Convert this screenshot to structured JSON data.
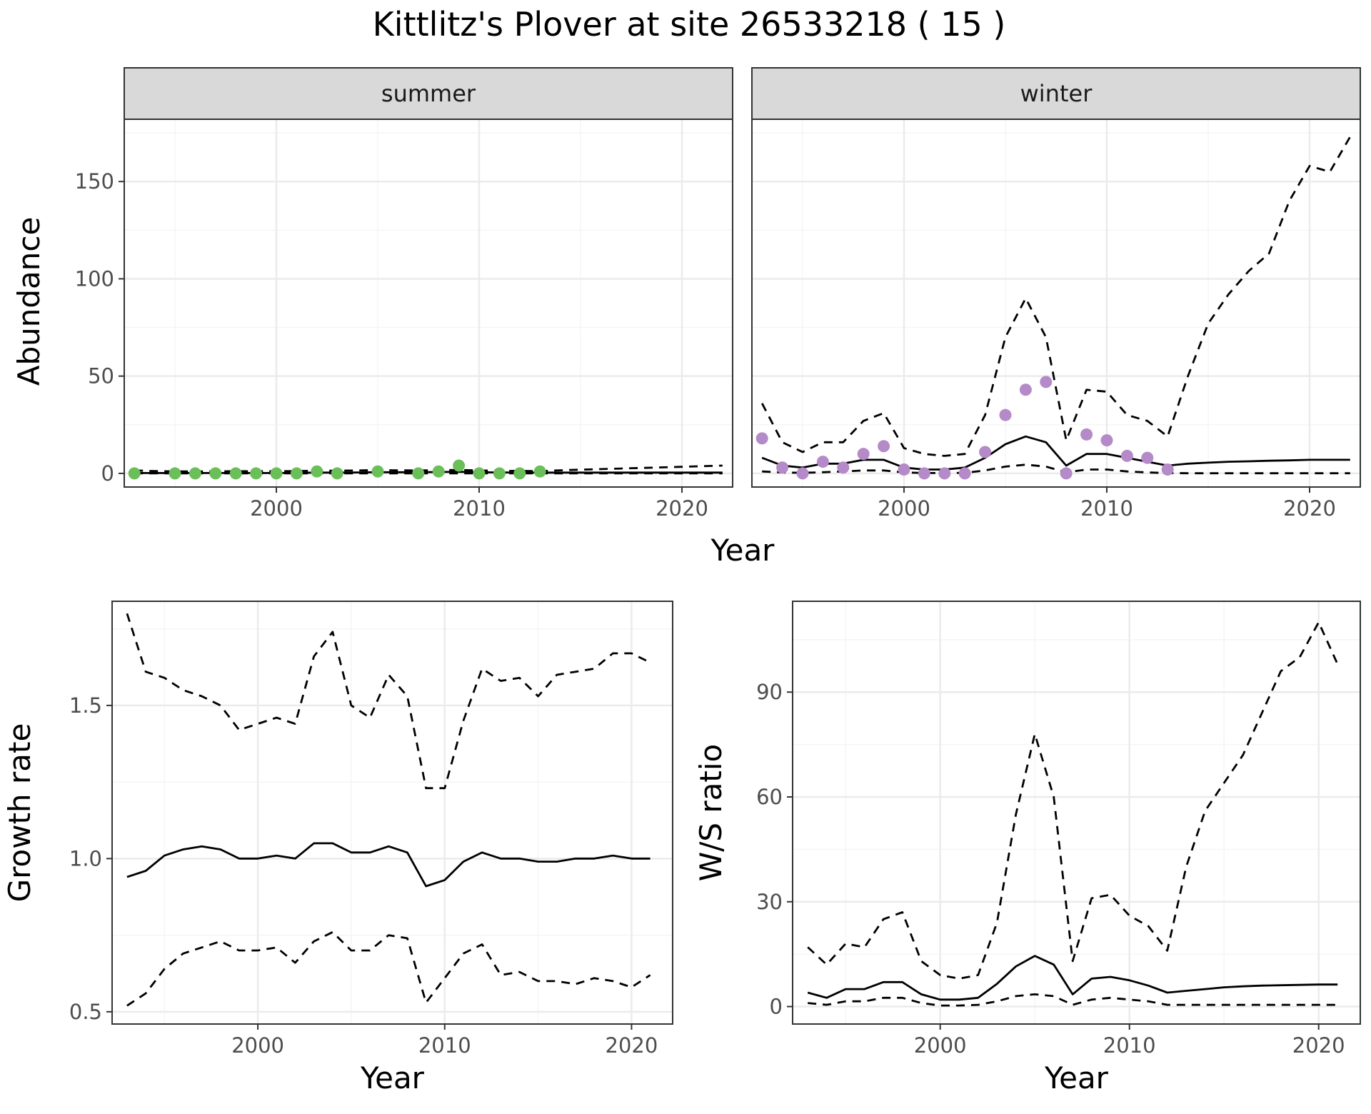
{
  "title": "Kittlitz's Plover at site 26533218 ( 15 )",
  "colors": {
    "summer_points": "#6bbf59",
    "winter_points": "#b48ac8",
    "line": "#000000",
    "strip_fill": "#d9d9d9",
    "grid_major": "#ebebeb",
    "grid_minor": "#f5f5f5"
  },
  "chart_data": [
    {
      "type": "line",
      "panel": "summer",
      "strip_label": "summer",
      "ylabel": "Abundance",
      "xlabel": "Year",
      "xlim": [
        1992.5,
        2022.5
      ],
      "ylim": [
        -7,
        182
      ],
      "x_ticks": [
        2000,
        2010,
        2020
      ],
      "y_ticks": [
        0,
        50,
        100,
        150
      ],
      "grid": true,
      "series": [
        {
          "role": "estimate",
          "style": "solid",
          "x": [
            1993,
            1994,
            1995,
            1996,
            1997,
            1998,
            1999,
            2000,
            2001,
            2002,
            2003,
            2004,
            2005,
            2006,
            2007,
            2008,
            2009,
            2010,
            2011,
            2012,
            2013,
            2014,
            2015,
            2016,
            2017,
            2018,
            2019,
            2020,
            2021,
            2022
          ],
          "y": [
            0.2,
            0.2,
            0.2,
            0.2,
            0.2,
            0.2,
            0.2,
            0.2,
            0.3,
            0.4,
            0.4,
            0.5,
            0.6,
            0.6,
            0.6,
            0.7,
            0.8,
            0.6,
            0.5,
            0.5,
            0.4,
            0.4,
            0.4,
            0.4,
            0.4,
            0.4,
            0.4,
            0.4,
            0.4,
            0.4
          ]
        },
        {
          "role": "upper",
          "style": "dashed",
          "x": [
            1993,
            1994,
            1995,
            1996,
            1997,
            1998,
            1999,
            2000,
            2001,
            2002,
            2003,
            2004,
            2005,
            2006,
            2007,
            2008,
            2009,
            2010,
            2011,
            2012,
            2013,
            2014,
            2015,
            2016,
            2017,
            2018,
            2019,
            2020,
            2021,
            2022
          ],
          "y": [
            1.5,
            1.2,
            1.0,
            1.0,
            1.0,
            1.1,
            1.1,
            1.1,
            1.2,
            1.4,
            1.4,
            1.5,
            1.7,
            1.6,
            1.5,
            1.6,
            1.8,
            1.5,
            1.3,
            1.3,
            1.2,
            1.6,
            1.9,
            2.2,
            2.5,
            2.8,
            3.1,
            3.4,
            3.7,
            4.0
          ]
        },
        {
          "role": "lower",
          "style": "dashed",
          "x": [
            1993,
            1994,
            1995,
            1996,
            1997,
            1998,
            1999,
            2000,
            2001,
            2002,
            2003,
            2004,
            2005,
            2006,
            2007,
            2008,
            2009,
            2010,
            2011,
            2012,
            2013,
            2014,
            2015,
            2016,
            2017,
            2018,
            2019,
            2020,
            2021,
            2022
          ],
          "y": [
            0,
            0,
            0,
            0,
            0,
            0,
            0,
            0,
            0,
            0,
            0,
            0,
            0,
            0,
            0,
            0,
            0,
            0,
            0,
            0,
            0,
            0,
            0,
            0,
            0,
            0,
            0,
            0,
            0,
            0
          ]
        },
        {
          "role": "observed",
          "style": "points",
          "x": [
            1993,
            1995,
            1996,
            1997,
            1998,
            1999,
            2000,
            2001,
            2002,
            2003,
            2005,
            2007,
            2008,
            2009,
            2010,
            2011,
            2012,
            2013
          ],
          "y": [
            0,
            0,
            0,
            0,
            0,
            0,
            0,
            0,
            1,
            0,
            1,
            0,
            1,
            4,
            0,
            0,
            0,
            1
          ]
        }
      ]
    },
    {
      "type": "line",
      "panel": "winter",
      "strip_label": "winter",
      "ylabel": "Abundance",
      "xlabel": "Year",
      "xlim": [
        1992.5,
        2022.5
      ],
      "ylim": [
        -7,
        182
      ],
      "x_ticks": [
        2000,
        2010,
        2020
      ],
      "y_ticks": [
        0,
        50,
        100,
        150
      ],
      "grid": true,
      "series": [
        {
          "role": "estimate",
          "style": "solid",
          "x": [
            1993,
            1994,
            1995,
            1996,
            1997,
            1998,
            1999,
            2000,
            2001,
            2002,
            2003,
            2004,
            2005,
            2006,
            2007,
            2008,
            2009,
            2010,
            2011,
            2012,
            2013,
            2014,
            2015,
            2016,
            2017,
            2018,
            2019,
            2020,
            2021,
            2022
          ],
          "y": [
            8,
            4,
            3,
            5,
            5,
            7,
            7,
            3,
            2,
            2,
            3,
            8,
            15,
            19,
            16,
            4,
            10,
            10,
            8,
            6,
            4,
            5,
            5.5,
            6,
            6.2,
            6.5,
            6.7,
            7,
            7,
            7
          ]
        },
        {
          "role": "upper",
          "style": "dashed",
          "x": [
            1993,
            1994,
            1995,
            1996,
            1997,
            1998,
            1999,
            2000,
            2001,
            2002,
            2003,
            2004,
            2005,
            2006,
            2007,
            2008,
            2009,
            2010,
            2011,
            2012,
            2013,
            2014,
            2015,
            2016,
            2017,
            2018,
            2019,
            2020,
            2021,
            2022
          ],
          "y": [
            36,
            16,
            11,
            16,
            16,
            27,
            31,
            13,
            10,
            9,
            10,
            30,
            70,
            90,
            70,
            17,
            43,
            42,
            30,
            27,
            19,
            50,
            77,
            92,
            104,
            113,
            140,
            158,
            155,
            173
          ]
        },
        {
          "role": "lower",
          "style": "dashed",
          "x": [
            1993,
            1994,
            1995,
            1996,
            1997,
            1998,
            1999,
            2000,
            2001,
            2002,
            2003,
            2004,
            2005,
            2006,
            2007,
            2008,
            2009,
            2010,
            2011,
            2012,
            2013,
            2014,
            2015,
            2016,
            2017,
            2018,
            2019,
            2020,
            2021,
            2022
          ],
          "y": [
            1,
            0.5,
            0.3,
            0.6,
            1,
            1.5,
            1.5,
            0.5,
            0.2,
            0.2,
            0.3,
            1.5,
            3.5,
            4.5,
            3.5,
            0.5,
            2,
            2,
            1,
            0.5,
            0.2,
            0.1,
            0.1,
            0.1,
            0.1,
            0.1,
            0.1,
            0.1,
            0.1,
            0.1
          ]
        },
        {
          "role": "observed",
          "style": "points",
          "x": [
            1993,
            1994,
            1995,
            1996,
            1997,
            1998,
            1999,
            2000,
            2001,
            2002,
            2003,
            2004,
            2005,
            2006,
            2007,
            2008,
            2009,
            2010,
            2011,
            2012,
            2013
          ],
          "y": [
            18,
            3,
            0,
            6,
            3,
            10,
            14,
            2,
            0,
            0,
            0,
            11,
            30,
            43,
            47,
            0,
            20,
            17,
            9,
            8,
            2
          ]
        }
      ]
    },
    {
      "type": "line",
      "panel": "growth",
      "ylabel": "Growth rate",
      "xlabel": "Year",
      "xlim": [
        1992.2,
        2022.2
      ],
      "ylim": [
        0.46,
        1.84
      ],
      "x_ticks": [
        2000,
        2010,
        2020
      ],
      "y_ticks": [
        0.5,
        1.0,
        1.5
      ],
      "y_tick_labels": [
        "0.5",
        "1.0",
        "1.5"
      ],
      "grid": true,
      "series": [
        {
          "role": "estimate",
          "style": "solid",
          "x": [
            1993,
            1994,
            1995,
            1996,
            1997,
            1998,
            1999,
            2000,
            2001,
            2002,
            2003,
            2004,
            2005,
            2006,
            2007,
            2008,
            2009,
            2010,
            2011,
            2012,
            2013,
            2014,
            2015,
            2016,
            2017,
            2018,
            2019,
            2020,
            2021
          ],
          "y": [
            0.94,
            0.96,
            1.01,
            1.03,
            1.04,
            1.03,
            1.0,
            1.0,
            1.01,
            1.0,
            1.05,
            1.05,
            1.02,
            1.02,
            1.04,
            1.02,
            0.91,
            0.93,
            0.99,
            1.02,
            1.0,
            1.0,
            0.99,
            0.99,
            1.0,
            1.0,
            1.01,
            1.0,
            1.0
          ]
        },
        {
          "role": "upper",
          "style": "dashed",
          "x": [
            1993,
            1994,
            1995,
            1996,
            1997,
            1998,
            1999,
            2000,
            2001,
            2002,
            2003,
            2004,
            2005,
            2006,
            2007,
            2008,
            2009,
            2010,
            2011,
            2012,
            2013,
            2014,
            2015,
            2016,
            2017,
            2018,
            2019,
            2020,
            2021
          ],
          "y": [
            1.8,
            1.61,
            1.59,
            1.55,
            1.53,
            1.5,
            1.42,
            1.44,
            1.46,
            1.44,
            1.66,
            1.74,
            1.5,
            1.46,
            1.6,
            1.53,
            1.23,
            1.23,
            1.45,
            1.62,
            1.58,
            1.59,
            1.53,
            1.6,
            1.61,
            1.62,
            1.67,
            1.67,
            1.64
          ]
        },
        {
          "role": "lower",
          "style": "dashed",
          "x": [
            1993,
            1994,
            1995,
            1996,
            1997,
            1998,
            1999,
            2000,
            2001,
            2002,
            2003,
            2004,
            2005,
            2006,
            2007,
            2008,
            2009,
            2010,
            2011,
            2012,
            2013,
            2014,
            2015,
            2016,
            2017,
            2018,
            2019,
            2020,
            2021
          ],
          "y": [
            0.52,
            0.56,
            0.64,
            0.69,
            0.71,
            0.73,
            0.7,
            0.7,
            0.71,
            0.66,
            0.73,
            0.76,
            0.7,
            0.7,
            0.75,
            0.74,
            0.53,
            0.61,
            0.69,
            0.72,
            0.62,
            0.63,
            0.6,
            0.6,
            0.59,
            0.61,
            0.6,
            0.58,
            0.62
          ]
        }
      ]
    },
    {
      "type": "line",
      "panel": "ws_ratio",
      "ylabel": "W/S ratio",
      "xlabel": "Year",
      "xlim": [
        1992.2,
        2022.2
      ],
      "ylim": [
        -5,
        116
      ],
      "x_ticks": [
        2000,
        2010,
        2020
      ],
      "y_ticks": [
        0,
        30,
        60,
        90
      ],
      "grid": true,
      "series": [
        {
          "role": "estimate",
          "style": "solid",
          "x": [
            1993,
            1994,
            1995,
            1996,
            1997,
            1998,
            1999,
            2000,
            2001,
            2002,
            2003,
            2004,
            2005,
            2006,
            2007,
            2008,
            2009,
            2010,
            2011,
            2012,
            2013,
            2014,
            2015,
            2016,
            2017,
            2018,
            2019,
            2020,
            2021
          ],
          "y": [
            4,
            2.5,
            5,
            5,
            7,
            7,
            3.5,
            2,
            2,
            2.5,
            6.5,
            11.5,
            14.5,
            12,
            3.5,
            8,
            8.5,
            7.5,
            6,
            4,
            4.5,
            5,
            5.5,
            5.8,
            6,
            6.1,
            6.2,
            6.3,
            6.3
          ]
        },
        {
          "role": "upper",
          "style": "dashed",
          "x": [
            1993,
            1994,
            1995,
            1996,
            1997,
            1998,
            1999,
            2000,
            2001,
            2002,
            2003,
            2004,
            2005,
            2006,
            2007,
            2008,
            2009,
            2010,
            2011,
            2012,
            2013,
            2014,
            2015,
            2016,
            2017,
            2018,
            2019,
            2020,
            2021
          ],
          "y": [
            17,
            12,
            18,
            17,
            25,
            27,
            13,
            9,
            8,
            9,
            24,
            55,
            78,
            60,
            13,
            31,
            32,
            26,
            23,
            16,
            40,
            56,
            64,
            72,
            84,
            96,
            100,
            110,
            98
          ]
        },
        {
          "role": "lower",
          "style": "dashed",
          "x": [
            1993,
            1994,
            1995,
            1996,
            1997,
            1998,
            1999,
            2000,
            2001,
            2002,
            2003,
            2004,
            2005,
            2006,
            2007,
            2008,
            2009,
            2010,
            2011,
            2012,
            2013,
            2014,
            2015,
            2016,
            2017,
            2018,
            2019,
            2020,
            2021
          ],
          "y": [
            1,
            0.5,
            1.5,
            1.5,
            2.5,
            2.5,
            1,
            0.3,
            0.3,
            0.5,
            1.5,
            3,
            3.5,
            3,
            0.5,
            2,
            2.5,
            2,
            1.5,
            0.5,
            0.5,
            0.5,
            0.5,
            0.5,
            0.5,
            0.5,
            0.5,
            0.5,
            0.5
          ]
        }
      ]
    }
  ]
}
